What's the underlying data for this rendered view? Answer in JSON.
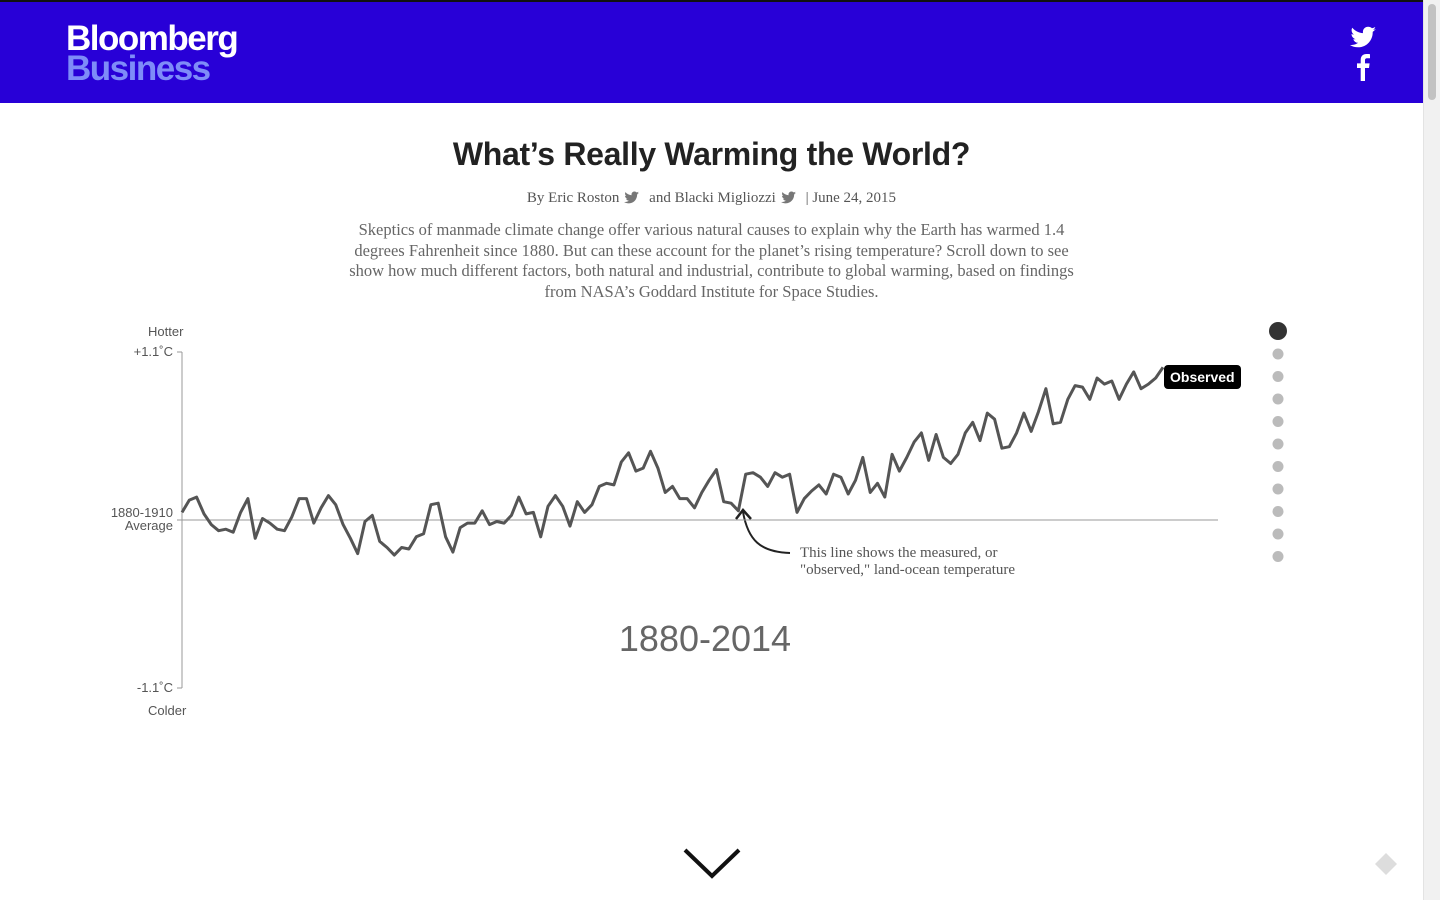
{
  "header": {
    "logo_top": "Bloomberg",
    "logo_bottom": "Business"
  },
  "article": {
    "title": "What’s Really Warming the World?",
    "byline": {
      "author1": "By Eric Roston",
      "author2": "and Blacki Migliozzi",
      "date": "| June 24, 2015"
    },
    "dek": "Skeptics of manmade climate change offer various natural causes to explain why the Earth has warmed 1.4 degrees Fahrenheit since 1880. But can these account for the planet’s rising temperature? Scroll down to see show how much different factors, both natural and industrial, contribute to global warming, based on findings from NASA’s Goddard Institute for Space Studies."
  },
  "chart_data": {
    "type": "line",
    "y_top_label": "Hotter",
    "y_bottom_label": "Colder",
    "period_label": "1880-2014",
    "annotation": "This line shows the measured, or \"observed,\" land-ocean temperature",
    "xlim": [
      1880,
      2014
    ],
    "x": [
      1880,
      1881,
      1882,
      1883,
      1884,
      1885,
      1886,
      1887,
      1888,
      1889,
      1890,
      1891,
      1892,
      1893,
      1894,
      1895,
      1896,
      1897,
      1898,
      1899,
      1900,
      1901,
      1902,
      1903,
      1904,
      1905,
      1906,
      1907,
      1908,
      1909,
      1910,
      1911,
      1912,
      1913,
      1914,
      1915,
      1916,
      1917,
      1918,
      1919,
      1920,
      1921,
      1922,
      1923,
      1924,
      1925,
      1926,
      1927,
      1928,
      1929,
      1930,
      1931,
      1932,
      1933,
      1934,
      1935,
      1936,
      1937,
      1938,
      1939,
      1940,
      1941,
      1942,
      1943,
      1944,
      1945,
      1946,
      1947,
      1948,
      1949,
      1950,
      1951,
      1952,
      1953,
      1954,
      1955,
      1956,
      1957,
      1958,
      1959,
      1960,
      1961,
      1962,
      1963,
      1964,
      1965,
      1966,
      1967,
      1968,
      1969,
      1970,
      1971,
      1972,
      1973,
      1974,
      1975,
      1976,
      1977,
      1978,
      1979,
      1980,
      1981,
      1982,
      1983,
      1984,
      1985,
      1986,
      1987,
      1988,
      1989,
      1990,
      1991,
      1992,
      1993,
      1994,
      1995,
      1996,
      1997,
      1998,
      1999,
      2000,
      2001,
      2002,
      2003,
      2004,
      2005,
      2006,
      2007,
      2008,
      2009,
      2010,
      2011,
      2012,
      2013,
      2014
    ],
    "series": [
      {
        "name": "Observed",
        "color": "#555555",
        "values": [
          0.05,
          0.13,
          0.15,
          0.04,
          -0.03,
          -0.07,
          -0.06,
          -0.08,
          0.05,
          0.14,
          -0.12,
          0.01,
          -0.02,
          -0.06,
          -0.07,
          0.02,
          0.14,
          0.14,
          -0.02,
          0.08,
          0.16,
          0.1,
          -0.03,
          -0.12,
          -0.22,
          -0.01,
          0.03,
          -0.14,
          -0.18,
          -0.23,
          -0.18,
          -0.19,
          -0.11,
          -0.09,
          0.1,
          0.11,
          -0.11,
          -0.21,
          -0.05,
          -0.02,
          -0.02,
          0.06,
          -0.03,
          -0.01,
          -0.02,
          0.03,
          0.15,
          0.04,
          0.05,
          -0.11,
          0.09,
          0.16,
          0.09,
          -0.04,
          0.12,
          0.05,
          0.1,
          0.22,
          0.24,
          0.23,
          0.38,
          0.44,
          0.32,
          0.34,
          0.45,
          0.34,
          0.18,
          0.22,
          0.14,
          0.14,
          0.08,
          0.18,
          0.26,
          0.33,
          0.12,
          0.11,
          0.06,
          0.3,
          0.31,
          0.28,
          0.22,
          0.31,
          0.28,
          0.3,
          0.05,
          0.14,
          0.19,
          0.23,
          0.17,
          0.3,
          0.28,
          0.17,
          0.26,
          0.41,
          0.18,
          0.24,
          0.15,
          0.43,
          0.32,
          0.41,
          0.51,
          0.57,
          0.39,
          0.56,
          0.41,
          0.37,
          0.43,
          0.57,
          0.64,
          0.52,
          0.7,
          0.66,
          0.47,
          0.48,
          0.57,
          0.7,
          0.58,
          0.71,
          0.86,
          0.63,
          0.64,
          0.79,
          0.88,
          0.87,
          0.79,
          0.93,
          0.89,
          0.91,
          0.79,
          0.89,
          0.97,
          0.86,
          0.89,
          0.93,
          1.0
        ]
      }
    ],
    "ylim": [
      -1.1,
      1.1
    ],
    "yticks": [
      {
        "value": 1.1,
        "label": "+1.1˚C"
      },
      {
        "value": 0,
        "label": "1880-1910 Average"
      },
      {
        "value": -1.1,
        "label": "-1.1˚C"
      }
    ]
  }
}
